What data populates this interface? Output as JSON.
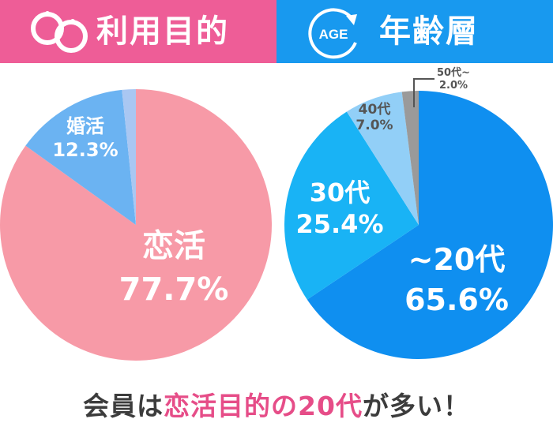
{
  "header": {
    "left_title": "利用目的",
    "right_title": "年齢層",
    "age_badge": "AGE",
    "colors": {
      "left_bg": "#ee5d97",
      "right_bg": "#1899ef"
    },
    "left_icon": "rings-icon",
    "right_icon": "age-cycle-icon"
  },
  "chart_data": [
    {
      "type": "pie",
      "title": "利用目的",
      "slices": [
        {
          "label": "恋活",
          "value": 77.7,
          "display": "77.7%",
          "color": "#f79aa7"
        },
        {
          "label": "婚活",
          "value": 12.3,
          "display": "12.3%",
          "color": "#6bb3f2"
        },
        {
          "label": "",
          "value": 1.5,
          "display": "",
          "color": "#a9c7f2"
        }
      ]
    },
    {
      "type": "pie",
      "title": "年齢層",
      "slices": [
        {
          "label": "~20代",
          "value": 65.6,
          "display": "65.6%",
          "color": "#0f8ff0"
        },
        {
          "label": "30代",
          "value": 25.4,
          "display": "25.4%",
          "color": "#19b3f5"
        },
        {
          "label": "40代",
          "value": 7.0,
          "display": "7.0%",
          "color": "#92cff7"
        },
        {
          "label": "50代~",
          "value": 2.0,
          "display": "2.0%",
          "color": "#9a9a9a"
        }
      ]
    }
  ],
  "footer": {
    "part1": "会員は",
    "part2": "恋活目的の20代",
    "part3": "が多い！"
  }
}
